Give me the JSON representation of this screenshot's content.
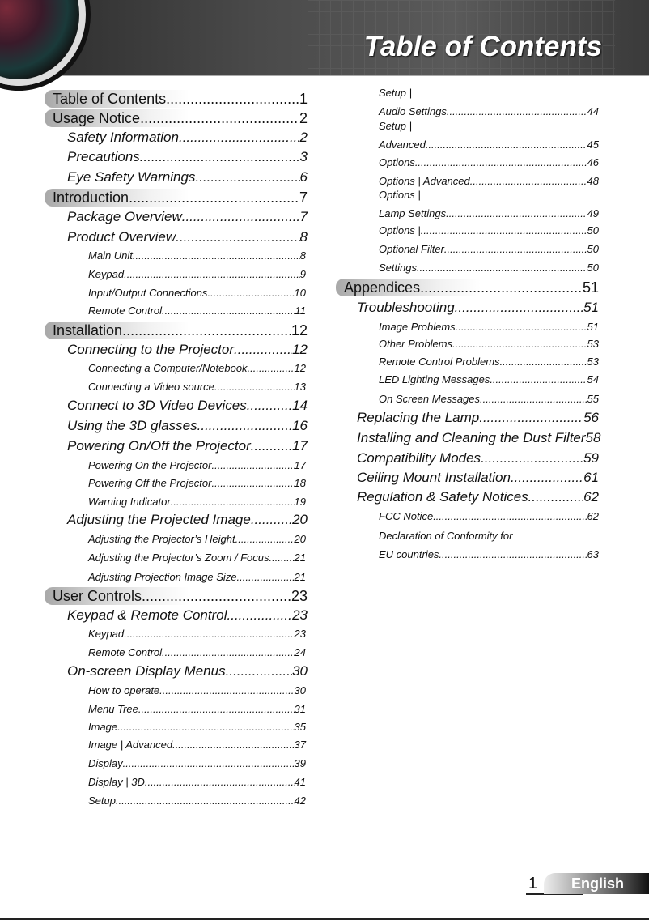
{
  "header": {
    "title": "Table of Contents"
  },
  "footer": {
    "page_number": "1",
    "language": "English"
  },
  "left_column": [
    {
      "level": 1,
      "text": "Table of Contents",
      "page": "1"
    },
    {
      "level": 1,
      "text": "Usage Notice",
      "page": "2"
    },
    {
      "level": 2,
      "text": "Safety Information",
      "page": "2"
    },
    {
      "level": 2,
      "text": "Precautions",
      "page": "3"
    },
    {
      "level": 2,
      "text": "Eye Safety Warnings",
      "page": "6"
    },
    {
      "level": 1,
      "text": "Introduction",
      "page": "7"
    },
    {
      "level": 2,
      "text": "Package Overview",
      "page": "7"
    },
    {
      "level": 2,
      "text": "Product Overview",
      "page": "8"
    },
    {
      "level": 3,
      "text": "Main Unit",
      "page": "8"
    },
    {
      "level": 3,
      "text": "Keypad",
      "page": "9"
    },
    {
      "level": 3,
      "text": "Input/Output Connections",
      "page": "10"
    },
    {
      "level": 3,
      "text": "Remote Control",
      "page": "11"
    },
    {
      "level": 1,
      "text": "Installation",
      "page": "12"
    },
    {
      "level": 2,
      "text": "Connecting to the Projector",
      "page": "12"
    },
    {
      "level": 3,
      "text": "Connecting a Computer/Notebook",
      "page": "12"
    },
    {
      "level": 3,
      "text": "Connecting a Video source",
      "page": "13"
    },
    {
      "level": 2,
      "text": "Connect to 3D Video Devices",
      "page": "14"
    },
    {
      "level": 2,
      "text": "Using the 3D glasses",
      "page": "16"
    },
    {
      "level": 2,
      "text": "Powering On/Off the Projector",
      "page": "17"
    },
    {
      "level": 3,
      "text": "Powering On the Projector",
      "page": "17"
    },
    {
      "level": 3,
      "text": "Powering Off the Projector",
      "page": "18"
    },
    {
      "level": 3,
      "text": "Warning Indicator",
      "page": "19"
    },
    {
      "level": 2,
      "text": "Adjusting the Projected Image",
      "page": "20"
    },
    {
      "level": 3,
      "text": "Adjusting the Projector’s Height",
      "page": "20"
    },
    {
      "level": 3,
      "text": "Adjusting the Projector’s Zoom / Focus",
      "page": "21"
    },
    {
      "level": 3,
      "text": "Adjusting Projection Image Size",
      "page": "21"
    },
    {
      "level": 1,
      "text": "User Controls",
      "page": "23"
    },
    {
      "level": 2,
      "text": "Keypad & Remote Control",
      "page": "23"
    },
    {
      "level": 3,
      "text": "Keypad",
      "page": "23"
    },
    {
      "level": 3,
      "text": "Remote Control",
      "page": "24"
    },
    {
      "level": 2,
      "text": "On-screen Display Menus",
      "page": "30"
    },
    {
      "level": 3,
      "text": "How to operate",
      "page": "30"
    },
    {
      "level": 3,
      "text": "Menu Tree",
      "page": "31"
    },
    {
      "level": 3,
      "text": "Image",
      "page": "35"
    },
    {
      "level": 3,
      "text": "Image | Advanced",
      "page": "37"
    },
    {
      "level": 3,
      "text": "Display",
      "page": "39"
    },
    {
      "level": 3,
      "text": "Display | 3D",
      "page": "41"
    },
    {
      "level": 3,
      "text": "Setup",
      "page": "42"
    }
  ],
  "right_column": [
    {
      "level": 3,
      "pre": "Setup |",
      "text": "Audio Settings",
      "page": "44"
    },
    {
      "level": 3,
      "pre": "Setup |",
      "text": "Advanced",
      "page": "45"
    },
    {
      "level": 3,
      "text": "Options",
      "page": "46"
    },
    {
      "level": 3,
      "text": "Options | Advanced",
      "page": "48"
    },
    {
      "level": 3,
      "pre": "Options |",
      "text": "Lamp Settings",
      "page": "49"
    },
    {
      "level": 3,
      "text": "Options |",
      "page": "50"
    },
    {
      "level": 3,
      "text": "Optional Filter",
      "page": "50"
    },
    {
      "level": 3,
      "text": " Settings",
      "page": "50"
    },
    {
      "level": 1,
      "text": "Appendices",
      "page": "51"
    },
    {
      "level": 2,
      "text": "Troubleshooting",
      "page": "51"
    },
    {
      "level": 3,
      "text": "Image Problems",
      "page": "51"
    },
    {
      "level": 3,
      "text": "Other Problems",
      "page": "53"
    },
    {
      "level": 3,
      "text": "Remote Control Problems",
      "page": "53"
    },
    {
      "level": 3,
      "text": "LED Lighting Messages",
      "page": "54"
    },
    {
      "level": 3,
      "text": "On Screen Messages",
      "page": "55"
    },
    {
      "level": 2,
      "text": "Replacing the Lamp",
      "page": "56"
    },
    {
      "level": 2,
      "text": "Installing and Cleaning the Dust Filter",
      "page": "58"
    },
    {
      "level": 2,
      "text": "Compatibility Modes",
      "page": "59"
    },
    {
      "level": 2,
      "text": "Ceiling Mount Installation",
      "page": "61"
    },
    {
      "level": 2,
      "text": "Regulation & Safety Notices",
      "page": "62"
    },
    {
      "level": 3,
      "text": "FCC Notice",
      "page": "62"
    },
    {
      "level": 3,
      "pre": "Declaration of Conformity for",
      "text": "EU countries",
      "page": "63"
    }
  ]
}
